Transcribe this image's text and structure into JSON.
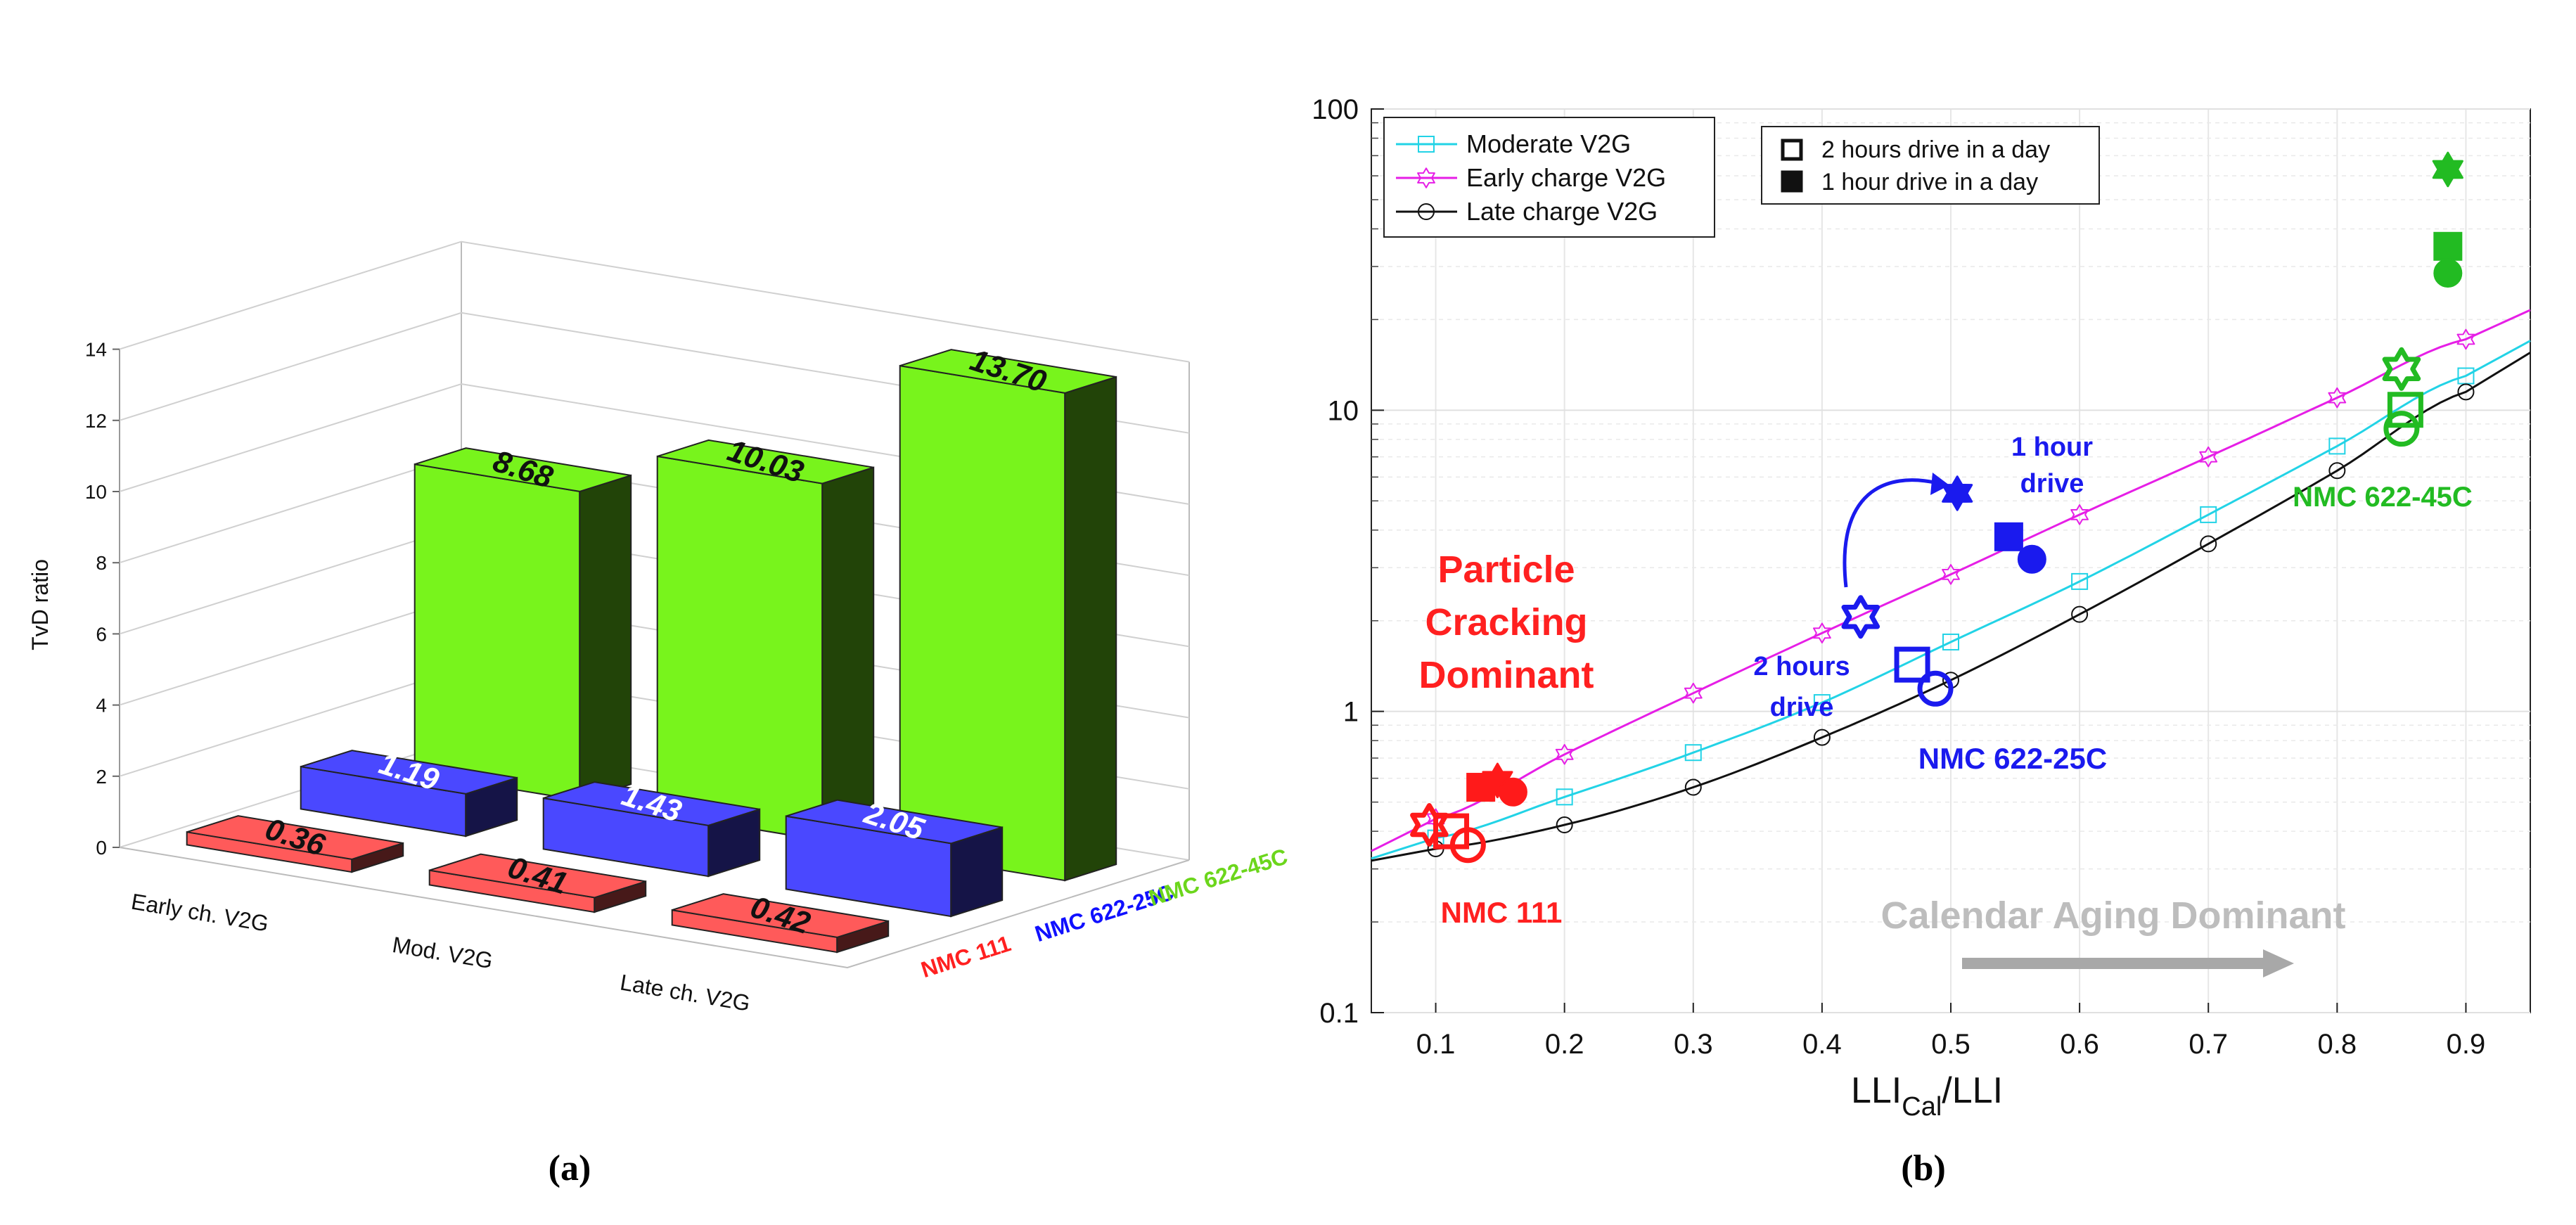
{
  "chart_data": [
    {
      "id": "a",
      "type": "bar",
      "panel_label": "(a)",
      "ylabel": "TvD ratio",
      "ylim": [
        0,
        14
      ],
      "y_ticks": [
        "0",
        "2",
        "4",
        "6",
        "8",
        "10",
        "12",
        "14"
      ],
      "categories": [
        "Early ch. V2G",
        "Mod. V2G",
        "Late ch. V2G"
      ],
      "series": [
        {
          "name": "NMC 111",
          "color": "#ff5a5a",
          "labels": [
            "0.36",
            "0.41",
            "0.42"
          ],
          "values": [
            0.36,
            0.41,
            0.42
          ]
        },
        {
          "name": "NMC 622-25C",
          "color": "#4a48ff",
          "labels": [
            "1.19",
            "1.43",
            "2.05"
          ],
          "values": [
            1.19,
            1.43,
            2.05
          ]
        },
        {
          "name": "NMC 622-45C",
          "color": "#78f41c",
          "labels": [
            "8.68",
            "10.03",
            "13.70"
          ],
          "values": [
            8.68,
            10.03,
            13.7
          ]
        }
      ],
      "series_label_colors": [
        "#ff2020",
        "#1010ff",
        "#6cd61c"
      ]
    },
    {
      "id": "b",
      "type": "line",
      "panel_label": "(b)",
      "xlabel_main": "LLI",
      "xlabel_sub": "Cal",
      "xlabel_tail": "/LLI",
      "xlim": [
        0.05,
        0.95
      ],
      "ylim": [
        0.1,
        100
      ],
      "yscale": "log",
      "x_ticks": [
        "0.1",
        "0.2",
        "0.3",
        "0.4",
        "0.5",
        "0.6",
        "0.7",
        "0.8",
        "0.9"
      ],
      "y_ticks": [
        "0.1",
        "1",
        "10",
        "100"
      ],
      "series": [
        {
          "name": "Moderate V2G",
          "color": "#22d3e6",
          "marker": "square",
          "x": [
            0.1,
            0.2,
            0.3,
            0.4,
            0.5,
            0.6,
            0.7,
            0.8,
            0.9
          ],
          "y": [
            0.38,
            0.52,
            0.73,
            1.07,
            1.7,
            2.7,
            4.5,
            7.6,
            13.0
          ]
        },
        {
          "name": "Early charge V2G",
          "color": "#e61ee6",
          "marker": "hexagram",
          "x": [
            0.1,
            0.2,
            0.3,
            0.4,
            0.5,
            0.6,
            0.7,
            0.8,
            0.9
          ],
          "y": [
            0.44,
            0.72,
            1.15,
            1.82,
            2.85,
            4.5,
            7.0,
            11.0,
            17.2
          ]
        },
        {
          "name": "Late charge V2G",
          "color": "#111111",
          "marker": "circle",
          "x": [
            0.1,
            0.2,
            0.3,
            0.4,
            0.5,
            0.6,
            0.7,
            0.8,
            0.9
          ],
          "y": [
            0.35,
            0.42,
            0.56,
            0.82,
            1.27,
            2.1,
            3.6,
            6.3,
            11.5
          ]
        }
      ],
      "highlight_points": [
        {
          "group": "NMC 111",
          "color": "#ff1a1a",
          "drive": "2h",
          "marker": "hexagram",
          "x": 0.095,
          "y": 0.42
        },
        {
          "group": "NMC 111",
          "color": "#ff1a1a",
          "drive": "2h",
          "marker": "square",
          "x": 0.112,
          "y": 0.4
        },
        {
          "group": "NMC 111",
          "color": "#ff1a1a",
          "drive": "2h",
          "marker": "circle",
          "x": 0.125,
          "y": 0.36
        },
        {
          "group": "NMC 111",
          "color": "#ff1a1a",
          "drive": "1h",
          "marker": "hexagram",
          "x": 0.148,
          "y": 0.59
        },
        {
          "group": "NMC 111",
          "color": "#ff1a1a",
          "drive": "1h",
          "marker": "square",
          "x": 0.135,
          "y": 0.56
        },
        {
          "group": "NMC 111",
          "color": "#ff1a1a",
          "drive": "1h",
          "marker": "circle",
          "x": 0.16,
          "y": 0.54
        },
        {
          "group": "NMC 622-25C",
          "color": "#1a1aee",
          "drive": "2h",
          "marker": "hexagram",
          "x": 0.43,
          "y": 2.06
        },
        {
          "group": "NMC 622-25C",
          "color": "#1a1aee",
          "drive": "2h",
          "marker": "square",
          "x": 0.47,
          "y": 1.43
        },
        {
          "group": "NMC 622-25C",
          "color": "#1a1aee",
          "drive": "2h",
          "marker": "circle",
          "x": 0.488,
          "y": 1.19
        },
        {
          "group": "NMC 622-25C",
          "color": "#1a1aee",
          "drive": "1h",
          "marker": "hexagram",
          "x": 0.505,
          "y": 5.3
        },
        {
          "group": "NMC 622-25C",
          "color": "#1a1aee",
          "drive": "1h",
          "marker": "square",
          "x": 0.545,
          "y": 3.8
        },
        {
          "group": "NMC 622-25C",
          "color": "#1a1aee",
          "drive": "1h",
          "marker": "circle",
          "x": 0.563,
          "y": 3.2
        },
        {
          "group": "NMC 622-45C",
          "color": "#22bb22",
          "drive": "2h",
          "marker": "hexagram",
          "x": 0.85,
          "y": 13.7
        },
        {
          "group": "NMC 622-45C",
          "color": "#22bb22",
          "drive": "2h",
          "marker": "square",
          "x": 0.853,
          "y": 10.03
        },
        {
          "group": "NMC 622-45C",
          "color": "#22bb22",
          "drive": "2h",
          "marker": "circle",
          "x": 0.85,
          "y": 8.68
        },
        {
          "group": "NMC 622-45C",
          "color": "#22bb22",
          "drive": "1h",
          "marker": "hexagram",
          "x": 0.886,
          "y": 63
        },
        {
          "group": "NMC 622-45C",
          "color": "#22bb22",
          "drive": "1h",
          "marker": "square",
          "x": 0.886,
          "y": 35
        },
        {
          "group": "NMC 622-45C",
          "color": "#22bb22",
          "drive": "1h",
          "marker": "circle",
          "x": 0.886,
          "y": 28.5
        }
      ],
      "legend_lines": [
        "Moderate V2G",
        "Early charge V2G",
        "Late charge V2G"
      ],
      "legend_fill": [
        "2 hours drive in a day",
        "1 hour drive in a day"
      ],
      "annotations": {
        "particle_cracking": [
          "Particle",
          "Cracking",
          "Dominant"
        ],
        "calendar_aging": "Calendar Aging Dominant",
        "one_hour": [
          "1 hour",
          "drive"
        ],
        "two_hours": [
          "2 hours",
          "drive"
        ],
        "nmc111": "NMC 111",
        "nmc622_25": "NMC 622-25C",
        "nmc622_45": "NMC 622-45C"
      }
    }
  ]
}
